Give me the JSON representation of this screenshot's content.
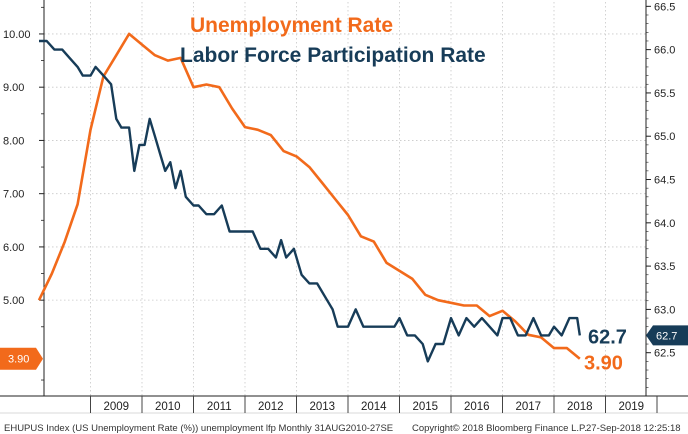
{
  "chart_data": {
    "type": "line",
    "title_lines": [
      "Unemployment Rate",
      "Labor Force Participation Rate"
    ],
    "x_ticks": [
      "2009",
      "2010",
      "2011",
      "2012",
      "2013",
      "2014",
      "2015",
      "2016",
      "2017",
      "2018",
      "2019"
    ],
    "left_axis": {
      "ylim": [
        3.2,
        10.6
      ],
      "ticks": [
        "10.00",
        "9.00",
        "8.00",
        "7.00",
        "6.00",
        "5.00"
      ],
      "tick_values": [
        10,
        9,
        8,
        7,
        6,
        5
      ]
    },
    "right_axis": {
      "ylim": [
        62.0,
        66.55
      ],
      "ticks": [
        "66.5",
        "66.0",
        "65.5",
        "65.0",
        "64.5",
        "64.0",
        "63.5",
        "63.0",
        "62.5"
      ],
      "tick_values": [
        66.5,
        66.0,
        65.5,
        65.0,
        64.5,
        64.0,
        63.5,
        63.0,
        62.5
      ]
    },
    "series": [
      {
        "name": "Unemployment Rate",
        "axis": "left",
        "color": "#f26a1b",
        "last_value": "3.90",
        "points": [
          [
            2008.0,
            5.0
          ],
          [
            2008.25,
            5.5
          ],
          [
            2008.5,
            6.1
          ],
          [
            2008.75,
            6.8
          ],
          [
            2009.0,
            8.2
          ],
          [
            2009.25,
            9.2
          ],
          [
            2009.5,
            9.6
          ],
          [
            2009.75,
            10.0
          ],
          [
            2010.0,
            9.8
          ],
          [
            2010.25,
            9.6
          ],
          [
            2010.5,
            9.5
          ],
          [
            2010.75,
            9.55
          ],
          [
            2011.0,
            9.0
          ],
          [
            2011.25,
            9.05
          ],
          [
            2011.5,
            9.0
          ],
          [
            2011.75,
            8.6
          ],
          [
            2012.0,
            8.25
          ],
          [
            2012.25,
            8.2
          ],
          [
            2012.5,
            8.1
          ],
          [
            2012.75,
            7.8
          ],
          [
            2013.0,
            7.7
          ],
          [
            2013.25,
            7.5
          ],
          [
            2013.5,
            7.2
          ],
          [
            2013.75,
            6.9
          ],
          [
            2014.0,
            6.6
          ],
          [
            2014.25,
            6.2
          ],
          [
            2014.5,
            6.1
          ],
          [
            2014.75,
            5.7
          ],
          [
            2015.0,
            5.55
          ],
          [
            2015.25,
            5.4
          ],
          [
            2015.5,
            5.1
          ],
          [
            2015.75,
            5.0
          ],
          [
            2016.0,
            4.95
          ],
          [
            2016.25,
            4.9
          ],
          [
            2016.5,
            4.9
          ],
          [
            2016.75,
            4.7
          ],
          [
            2017.0,
            4.8
          ],
          [
            2017.25,
            4.6
          ],
          [
            2017.5,
            4.35
          ],
          [
            2017.75,
            4.3
          ],
          [
            2018.0,
            4.1
          ],
          [
            2018.25,
            4.1
          ],
          [
            2018.5,
            3.9
          ]
        ]
      },
      {
        "name": "Labor Force Participation Rate",
        "axis": "right",
        "color": "#173c58",
        "last_value": "62.7",
        "points": [
          [
            2008.0,
            66.1
          ],
          [
            2008.15,
            66.1
          ],
          [
            2008.3,
            66.0
          ],
          [
            2008.45,
            66.0
          ],
          [
            2008.6,
            65.9
          ],
          [
            2008.75,
            65.8
          ],
          [
            2008.85,
            65.7
          ],
          [
            2009.0,
            65.7
          ],
          [
            2009.1,
            65.8
          ],
          [
            2009.25,
            65.7
          ],
          [
            2009.4,
            65.6
          ],
          [
            2009.5,
            65.2
          ],
          [
            2009.6,
            65.1
          ],
          [
            2009.75,
            65.1
          ],
          [
            2009.85,
            64.6
          ],
          [
            2009.95,
            64.9
          ],
          [
            2010.05,
            64.9
          ],
          [
            2010.15,
            65.2
          ],
          [
            2010.25,
            65.0
          ],
          [
            2010.35,
            64.8
          ],
          [
            2010.45,
            64.6
          ],
          [
            2010.55,
            64.7
          ],
          [
            2010.65,
            64.4
          ],
          [
            2010.75,
            64.6
          ],
          [
            2010.85,
            64.3
          ],
          [
            2011.0,
            64.2
          ],
          [
            2011.1,
            64.2
          ],
          [
            2011.25,
            64.1
          ],
          [
            2011.4,
            64.1
          ],
          [
            2011.55,
            64.2
          ],
          [
            2011.7,
            63.9
          ],
          [
            2011.85,
            63.9
          ],
          [
            2012.0,
            63.9
          ],
          [
            2012.15,
            63.9
          ],
          [
            2012.3,
            63.7
          ],
          [
            2012.45,
            63.7
          ],
          [
            2012.6,
            63.6
          ],
          [
            2012.7,
            63.8
          ],
          [
            2012.8,
            63.6
          ],
          [
            2012.95,
            63.7
          ],
          [
            2013.1,
            63.4
          ],
          [
            2013.25,
            63.3
          ],
          [
            2013.4,
            63.3
          ],
          [
            2013.5,
            63.2
          ],
          [
            2013.6,
            63.1
          ],
          [
            2013.7,
            63.0
          ],
          [
            2013.8,
            62.8
          ],
          [
            2014.0,
            62.8
          ],
          [
            2014.15,
            63.0
          ],
          [
            2014.3,
            62.8
          ],
          [
            2014.5,
            62.8
          ],
          [
            2014.7,
            62.8
          ],
          [
            2014.9,
            62.8
          ],
          [
            2015.0,
            62.9
          ],
          [
            2015.15,
            62.7
          ],
          [
            2015.3,
            62.7
          ],
          [
            2015.45,
            62.6
          ],
          [
            2015.55,
            62.4
          ],
          [
            2015.7,
            62.6
          ],
          [
            2015.85,
            62.6
          ],
          [
            2016.0,
            62.9
          ],
          [
            2016.15,
            62.7
          ],
          [
            2016.3,
            62.9
          ],
          [
            2016.45,
            62.8
          ],
          [
            2016.6,
            62.9
          ],
          [
            2016.75,
            62.8
          ],
          [
            2016.9,
            62.7
          ],
          [
            2017.0,
            62.9
          ],
          [
            2017.15,
            62.9
          ],
          [
            2017.3,
            62.7
          ],
          [
            2017.45,
            62.7
          ],
          [
            2017.6,
            62.9
          ],
          [
            2017.75,
            62.7
          ],
          [
            2017.9,
            62.7
          ],
          [
            2018.0,
            62.8
          ],
          [
            2018.15,
            62.7
          ],
          [
            2018.3,
            62.9
          ],
          [
            2018.45,
            62.9
          ],
          [
            2018.5,
            62.7
          ]
        ]
      }
    ],
    "footer": "EHUPUS Index (US Unemployment Rate (%)) unemployment lfp Monthly 31AUG2010-27SE",
    "copyright": "Copyright© 2018 Bloomberg Finance L.P.",
    "timestamp": "27-Sep-2018 12:25:18",
    "grid": true
  }
}
